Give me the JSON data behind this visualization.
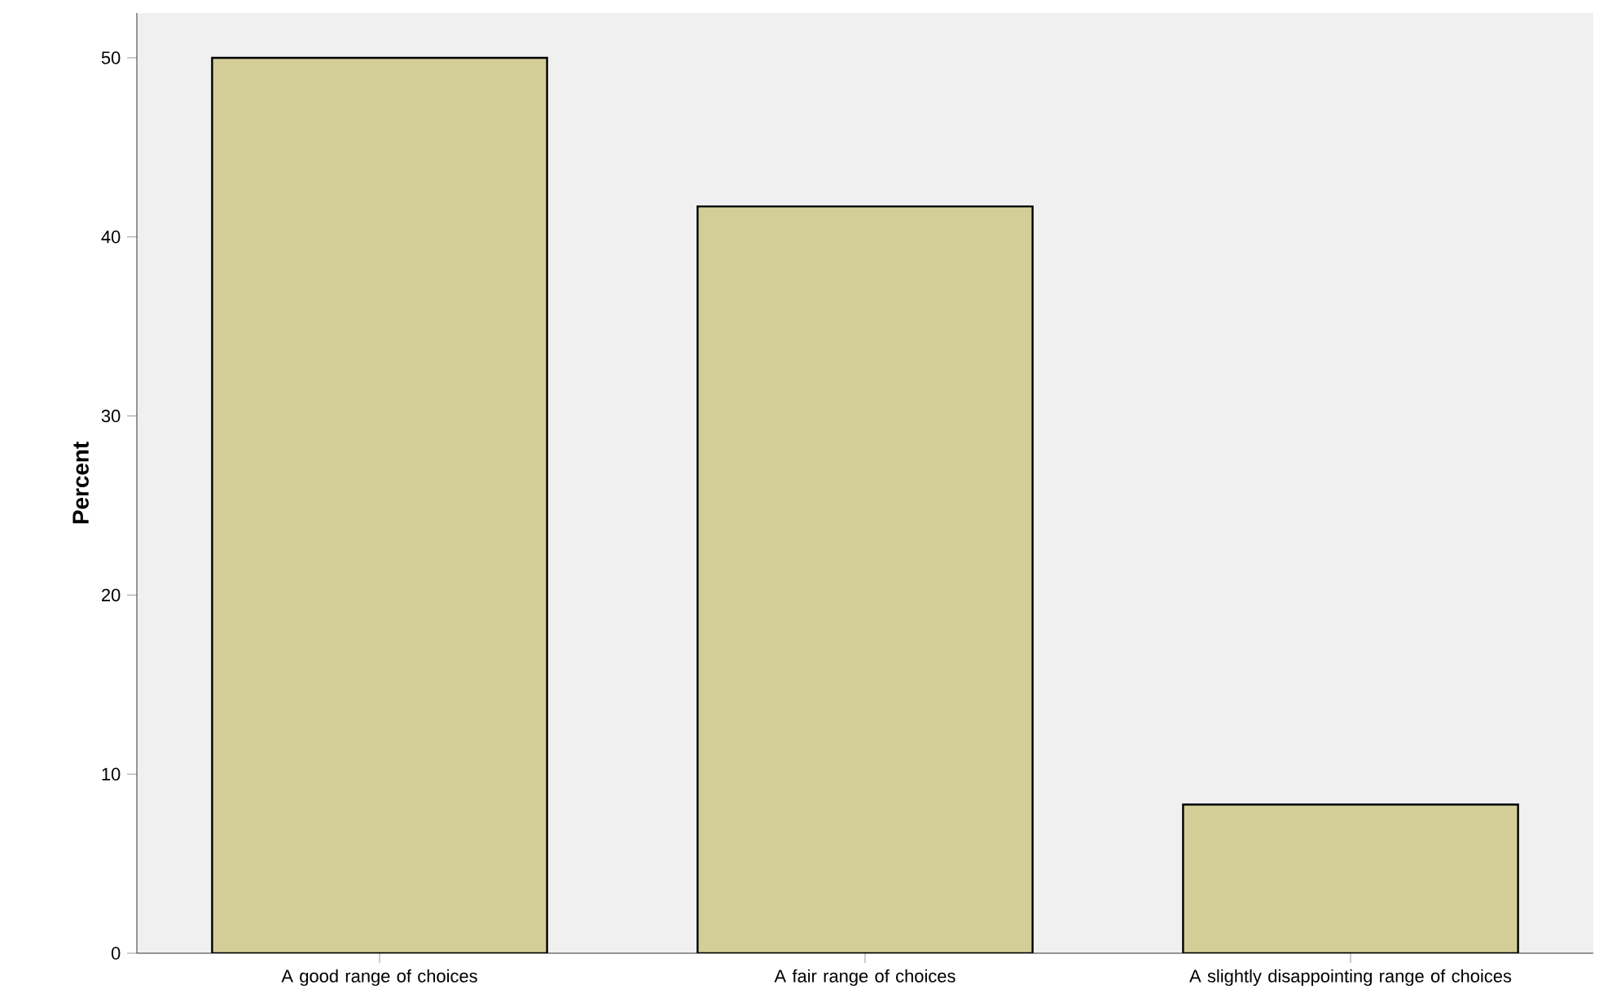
{
  "chart_data": {
    "type": "bar",
    "ylabel": "Percent",
    "categories": [
      "A good range of choices",
      "A fair range of choices",
      "A slightly disappointing range of choices"
    ],
    "values": [
      50,
      41.7,
      8.3
    ],
    "color": "#d3ce97",
    "ylim": [
      0,
      52.5
    ],
    "yticks": [
      0,
      10,
      20,
      30,
      40,
      50
    ],
    "grid": false
  }
}
